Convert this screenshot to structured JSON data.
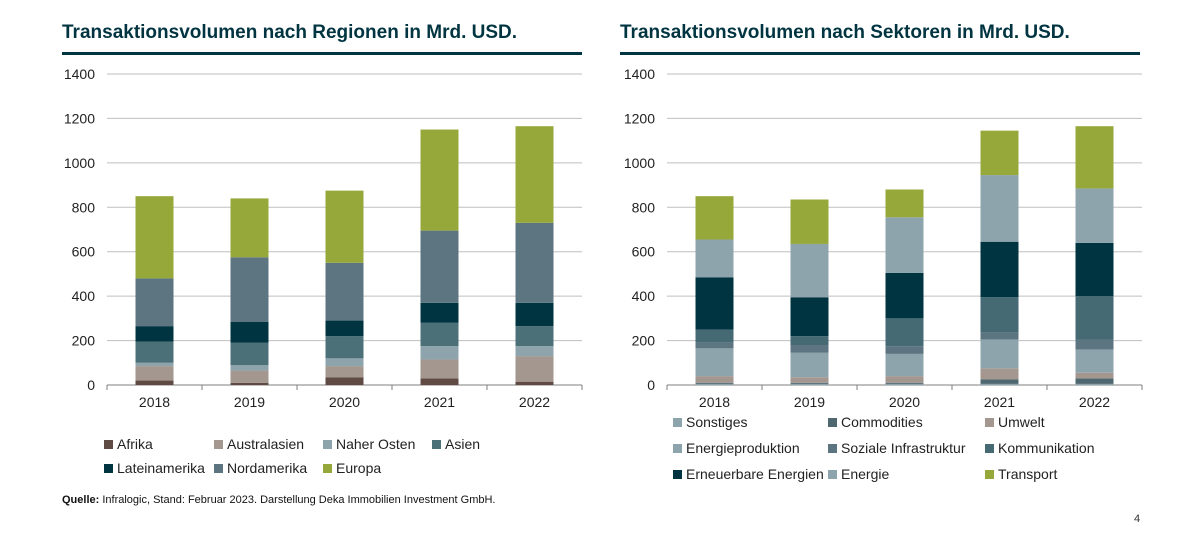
{
  "colors": {
    "Afrika": "#5f4b44",
    "Australasien": "#a39790",
    "Naher Osten": "#8ea4ad",
    "Asien": "#4c7078",
    "Lateinamerika": "#003440",
    "Nordamerika": "#5c7580",
    "Europa": "#96a83a",
    "Sonstiges": "#8ea4ad",
    "Commodities": "#4f6870",
    "Umwelt": "#a39790",
    "Energieproduktion": "#8ea4ad",
    "Soziale Infrastruktur": "#5c7580",
    "Kommunikation": "#466a74",
    "Erneuerbare Energien": "#003440",
    "Energie": "#8ea4ad",
    "Transport": "#96a83a",
    "axis": "#7f7f7f",
    "grid": "#bfbfbf",
    "title": "#003440"
  },
  "chart_data": [
    {
      "type": "bar",
      "stacked": true,
      "title": "Transaktionsvolumen nach Regionen in Mrd. USD.",
      "categories": [
        "2018",
        "2019",
        "2020",
        "2021",
        "2022"
      ],
      "ylim": [
        0,
        1400
      ],
      "yticks": [
        "0",
        "200",
        "400",
        "600",
        "800",
        "1000",
        "1200",
        "1400"
      ],
      "grid": true,
      "legend_position": "bottom",
      "series": [
        {
          "name": "Afrika",
          "values": [
            20,
            10,
            35,
            30,
            15
          ]
        },
        {
          "name": "Australasien",
          "values": [
            65,
            55,
            50,
            85,
            115
          ]
        },
        {
          "name": "Naher Osten",
          "values": [
            15,
            25,
            35,
            60,
            45
          ]
        },
        {
          "name": "Asien",
          "values": [
            95,
            100,
            100,
            105,
            90
          ]
        },
        {
          "name": "Lateinamerika",
          "values": [
            70,
            95,
            70,
            90,
            105
          ]
        },
        {
          "name": "Nordamerika",
          "values": [
            215,
            290,
            260,
            325,
            360
          ]
        },
        {
          "name": "Europa",
          "values": [
            370,
            265,
            325,
            455,
            435
          ]
        }
      ]
    },
    {
      "type": "bar",
      "stacked": true,
      "title": "Transaktionsvolumen nach Sektoren in Mrd. USD.",
      "categories": [
        "2018",
        "2019",
        "2020",
        "2021",
        "2022"
      ],
      "ylim": [
        0,
        1400
      ],
      "yticks": [
        "0",
        "200",
        "400",
        "600",
        "800",
        "1000",
        "1200",
        "1400"
      ],
      "grid": true,
      "legend_position": "bottom",
      "series": [
        {
          "name": "Sonstiges",
          "values": [
            5,
            5,
            5,
            5,
            5
          ]
        },
        {
          "name": "Commodities",
          "values": [
            5,
            5,
            5,
            20,
            25
          ]
        },
        {
          "name": "Umwelt",
          "values": [
            30,
            25,
            30,
            50,
            25
          ]
        },
        {
          "name": "Energieproduktion",
          "values": [
            125,
            110,
            100,
            130,
            105
          ]
        },
        {
          "name": "Soziale Infrastruktur",
          "values": [
            25,
            35,
            35,
            30,
            45
          ]
        },
        {
          "name": "Kommunikation",
          "values": [
            60,
            40,
            125,
            160,
            195
          ]
        },
        {
          "name": "Erneuerbare Energien",
          "values": [
            235,
            175,
            205,
            250,
            240
          ]
        },
        {
          "name": "Energie",
          "values": [
            170,
            240,
            250,
            300,
            245
          ]
        },
        {
          "name": "Transport",
          "values": [
            195,
            200,
            125,
            200,
            280
          ]
        }
      ]
    }
  ],
  "legend_left": [
    "Afrika",
    "Australasien",
    "Naher Osten",
    "Asien",
    "Lateinamerika",
    "Nordamerika",
    "Europa"
  ],
  "legend_right": [
    "Sonstiges",
    "Commodities",
    "Umwelt",
    "Energieproduktion",
    "Soziale Infrastruktur",
    "Kommunikation",
    "Erneuerbare Energien",
    "Energie",
    "Transport"
  ],
  "footer": {
    "source_label": "Quelle:",
    "source_text": " Infralogic, Stand: Februar 2023. Darstellung Deka Immobilien Investment GmbH."
  },
  "page_number": "4"
}
